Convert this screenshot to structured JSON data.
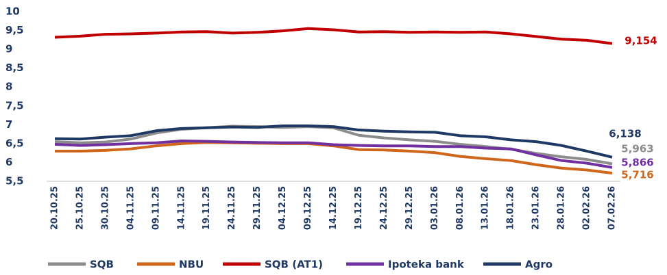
{
  "chart_data": {
    "type": "line",
    "categories": [
      "20.10.25",
      "25.10.25",
      "30.10.25",
      "04.11.25",
      "09.11.25",
      "14.11.25",
      "19.11.25",
      "24.11.25",
      "29.11.25",
      "04.12.25",
      "09.12.25",
      "14.12.25",
      "19.12.25",
      "24.12.25",
      "29.12.25",
      "03.01.26",
      "08.01.26",
      "13.01.26",
      "18.01.26",
      "23.01.26",
      "28.01.26",
      "02.02.26",
      "07.02.26"
    ],
    "series": [
      {
        "name": "SQB",
        "color": "#8c8c8c",
        "values": [
          6.55,
          6.52,
          6.54,
          6.62,
          6.78,
          6.88,
          6.92,
          6.96,
          6.95,
          6.93,
          6.95,
          6.92,
          6.72,
          6.65,
          6.6,
          6.56,
          6.48,
          6.42,
          6.35,
          6.24,
          6.15,
          6.08,
          5.963
        ],
        "value_labels": [
          null,
          null,
          null,
          null,
          null,
          null,
          null,
          null,
          null,
          null,
          null,
          null,
          null,
          null,
          null,
          null,
          null,
          null,
          null,
          null,
          null,
          null,
          "5,963"
        ]
      },
      {
        "name": "NBU",
        "color": "#d0661c",
        "values": [
          6.3,
          6.3,
          6.32,
          6.36,
          6.44,
          6.5,
          6.53,
          6.52,
          6.51,
          6.5,
          6.5,
          6.44,
          6.34,
          6.33,
          6.3,
          6.26,
          6.16,
          6.1,
          6.05,
          5.94,
          5.85,
          5.8,
          5.716
        ],
        "value_labels": [
          null,
          null,
          null,
          null,
          null,
          null,
          null,
          null,
          null,
          null,
          null,
          null,
          null,
          null,
          null,
          null,
          null,
          null,
          null,
          null,
          null,
          null,
          "5,716"
        ]
      },
      {
        "name": "SQB (AT1)",
        "color": "#c00000",
        "values": [
          9.32,
          9.35,
          9.4,
          9.41,
          9.43,
          9.46,
          9.47,
          9.43,
          9.45,
          9.49,
          9.55,
          9.52,
          9.46,
          9.47,
          9.45,
          9.46,
          9.45,
          9.46,
          9.41,
          9.34,
          9.27,
          9.24,
          9.154
        ],
        "value_labels": [
          null,
          null,
          null,
          null,
          null,
          null,
          null,
          null,
          null,
          null,
          null,
          null,
          null,
          null,
          null,
          null,
          null,
          null,
          null,
          null,
          null,
          null,
          "9,154"
        ]
      },
      {
        "name": "Ipoteka bank",
        "color": "#7030a0",
        "values": [
          6.48,
          6.45,
          6.47,
          6.5,
          6.52,
          6.57,
          6.56,
          6.54,
          6.53,
          6.52,
          6.52,
          6.47,
          6.45,
          6.44,
          6.44,
          6.42,
          6.42,
          6.38,
          6.36,
          6.2,
          6.05,
          5.98,
          5.866
        ],
        "value_labels": [
          null,
          null,
          null,
          null,
          null,
          null,
          null,
          null,
          null,
          null,
          null,
          null,
          null,
          null,
          null,
          null,
          null,
          null,
          null,
          null,
          null,
          null,
          "5,866"
        ]
      },
      {
        "name": "Agro",
        "color": "#1f3864",
        "values": [
          6.63,
          6.62,
          6.67,
          6.71,
          6.84,
          6.9,
          6.92,
          6.94,
          6.93,
          6.97,
          6.97,
          6.95,
          6.86,
          6.83,
          6.81,
          6.8,
          6.71,
          6.68,
          6.6,
          6.55,
          6.45,
          6.3,
          6.138
        ],
        "value_labels": [
          null,
          null,
          null,
          null,
          null,
          null,
          null,
          null,
          null,
          null,
          null,
          null,
          null,
          null,
          null,
          null,
          null,
          null,
          null,
          null,
          null,
          null,
          "6,138"
        ]
      }
    ],
    "ylim": [
      5.5,
      10
    ],
    "yticks": [
      {
        "value": 5.5,
        "label": "5,5"
      },
      6,
      {
        "value": 6.5,
        "label": "6,5"
      },
      7,
      {
        "value": 7.5,
        "label": "7,5"
      },
      8,
      {
        "value": 8.5,
        "label": "8,5"
      },
      9,
      {
        "value": 9.5,
        "label": "9,5"
      },
      10
    ],
    "legend": "bottom"
  }
}
